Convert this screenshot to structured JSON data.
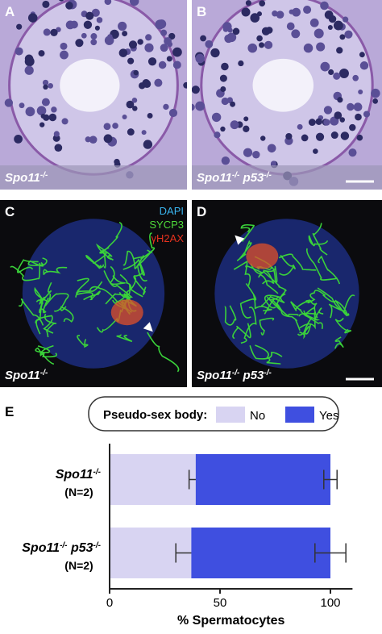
{
  "panels": [
    {
      "label": "A",
      "caption": [
        {
          "text": "Spo11"
        },
        {
          "sup": "-/-"
        }
      ]
    },
    {
      "label": "B",
      "caption": [
        {
          "text": "Spo11"
        },
        {
          "sup": "-/-"
        },
        {
          "text": " p53"
        },
        {
          "sup": "-/-"
        }
      ]
    },
    {
      "label": "C",
      "caption": [
        {
          "text": "Spo11"
        },
        {
          "sup": "-/-"
        }
      ],
      "stains": [
        "DAPI",
        "SYCP3",
        "γH2AX"
      ]
    },
    {
      "label": "D",
      "caption": [
        {
          "text": "Spo11"
        },
        {
          "sup": "-/-"
        },
        {
          "text": " p53"
        },
        {
          "sup": "-/-"
        }
      ]
    }
  ],
  "chart_data": {
    "type": "stacked-barh",
    "panel_label": "E",
    "legend_title": "Pseudo-sex body:",
    "categories": [
      [
        {
          "text": "Spo11"
        },
        {
          "sup": "-/-"
        }
      ],
      [
        {
          "text": "Spo11"
        },
        {
          "sup": "-/-"
        },
        {
          "text": " p53"
        },
        {
          "sup": "-/-"
        }
      ]
    ],
    "category_notes": [
      "(N=2)",
      "(N=2)"
    ],
    "series": [
      {
        "name": "No",
        "color": "#d8d4f2",
        "values": [
          39,
          37
        ],
        "errors": [
          3,
          7
        ]
      },
      {
        "name": "Yes",
        "color": "#3f4fe0",
        "values": [
          61,
          63
        ],
        "errors": [
          3,
          7
        ]
      }
    ],
    "xlim": [
      0,
      110
    ],
    "xticks": [
      0,
      50,
      100
    ],
    "xlabel": "% Spermatocytes"
  }
}
